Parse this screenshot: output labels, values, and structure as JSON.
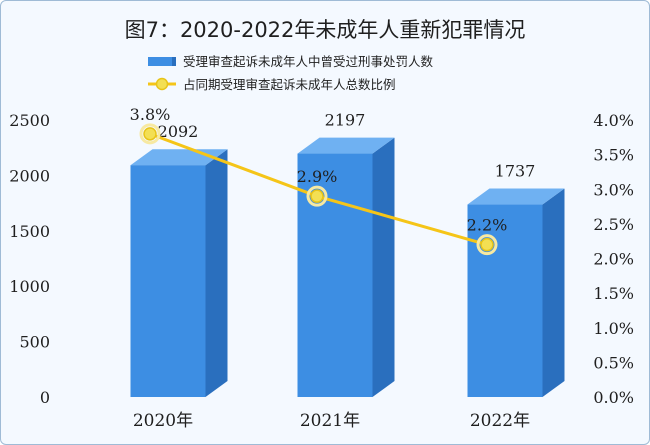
{
  "chart_data": {
    "type": "bar+line",
    "title": "图7：2020-2022年未成年人重新犯罪情况",
    "categories": [
      "2020年",
      "2021年",
      "2022年"
    ],
    "series": [
      {
        "name": "受理审查起诉未成年人中曾受过刑事处罚人数",
        "type": "bar",
        "axis": "left",
        "values": [
          2092,
          2197,
          1737
        ],
        "labels": [
          "2092",
          "2197",
          "1737"
        ]
      },
      {
        "name": "占同期受理审查起诉未成年人总数比例",
        "type": "line",
        "axis": "right",
        "values": [
          3.8,
          2.9,
          2.2
        ],
        "labels": [
          "3.8%",
          "2.9%",
          "2.2%"
        ]
      }
    ],
    "yleft": {
      "min": 0,
      "max": 2500,
      "ticks": [
        "0",
        "500",
        "1000",
        "1500",
        "2000",
        "2500"
      ]
    },
    "yright": {
      "min": 0,
      "max": 4.0,
      "ticks": [
        "0.0%",
        "0.5%",
        "1.0%",
        "1.5%",
        "2.0%",
        "2.5%",
        "3.0%",
        "3.5%",
        "4.0%"
      ]
    },
    "legend_position": "top-center",
    "grid": false,
    "colors": {
      "bar_front": "#3d8ee3",
      "bar_side": "#2a6fbe",
      "bar_top": "#6fb1f2",
      "line": "#f5c518",
      "marker": "#f3df53"
    }
  }
}
